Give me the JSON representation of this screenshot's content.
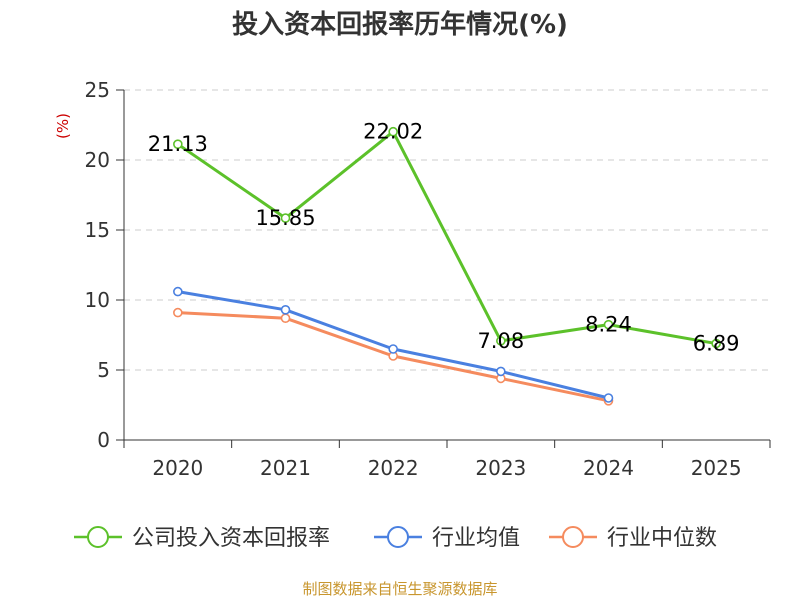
{
  "chart_data": {
    "type": "line",
    "title": "投入资本回报率历年情况(%)",
    "ylabel": "(%)",
    "xlabel": "",
    "categories": [
      "2020",
      "2021",
      "2022",
      "2023",
      "2024",
      "2025"
    ],
    "ylim": [
      0,
      25
    ],
    "yticks": [
      0,
      5,
      10,
      15,
      20,
      25
    ],
    "series": [
      {
        "name": "公司投入资本回报率",
        "color": "#5cc12a",
        "values": [
          21.13,
          15.85,
          22.02,
          7.08,
          8.24,
          6.89
        ],
        "labels": [
          "21.13",
          "15.85",
          "22.02",
          "7.08",
          "8.24",
          "6.89"
        ]
      },
      {
        "name": "行业均值",
        "color": "#4a80e0",
        "values": [
          10.6,
          9.3,
          6.5,
          4.9,
          3.0,
          null
        ]
      },
      {
        "name": "行业中位数",
        "color": "#f58b5e",
        "values": [
          9.1,
          8.7,
          6.0,
          4.4,
          2.8,
          null
        ]
      }
    ],
    "legend_position": "bottom",
    "source": "制图数据来自恒生聚源数据库"
  },
  "colors": {
    "title": "#333333",
    "ylabel": "#cc0000",
    "source": "#c8962e",
    "grid": "#cccccc",
    "axis": "#333333"
  }
}
